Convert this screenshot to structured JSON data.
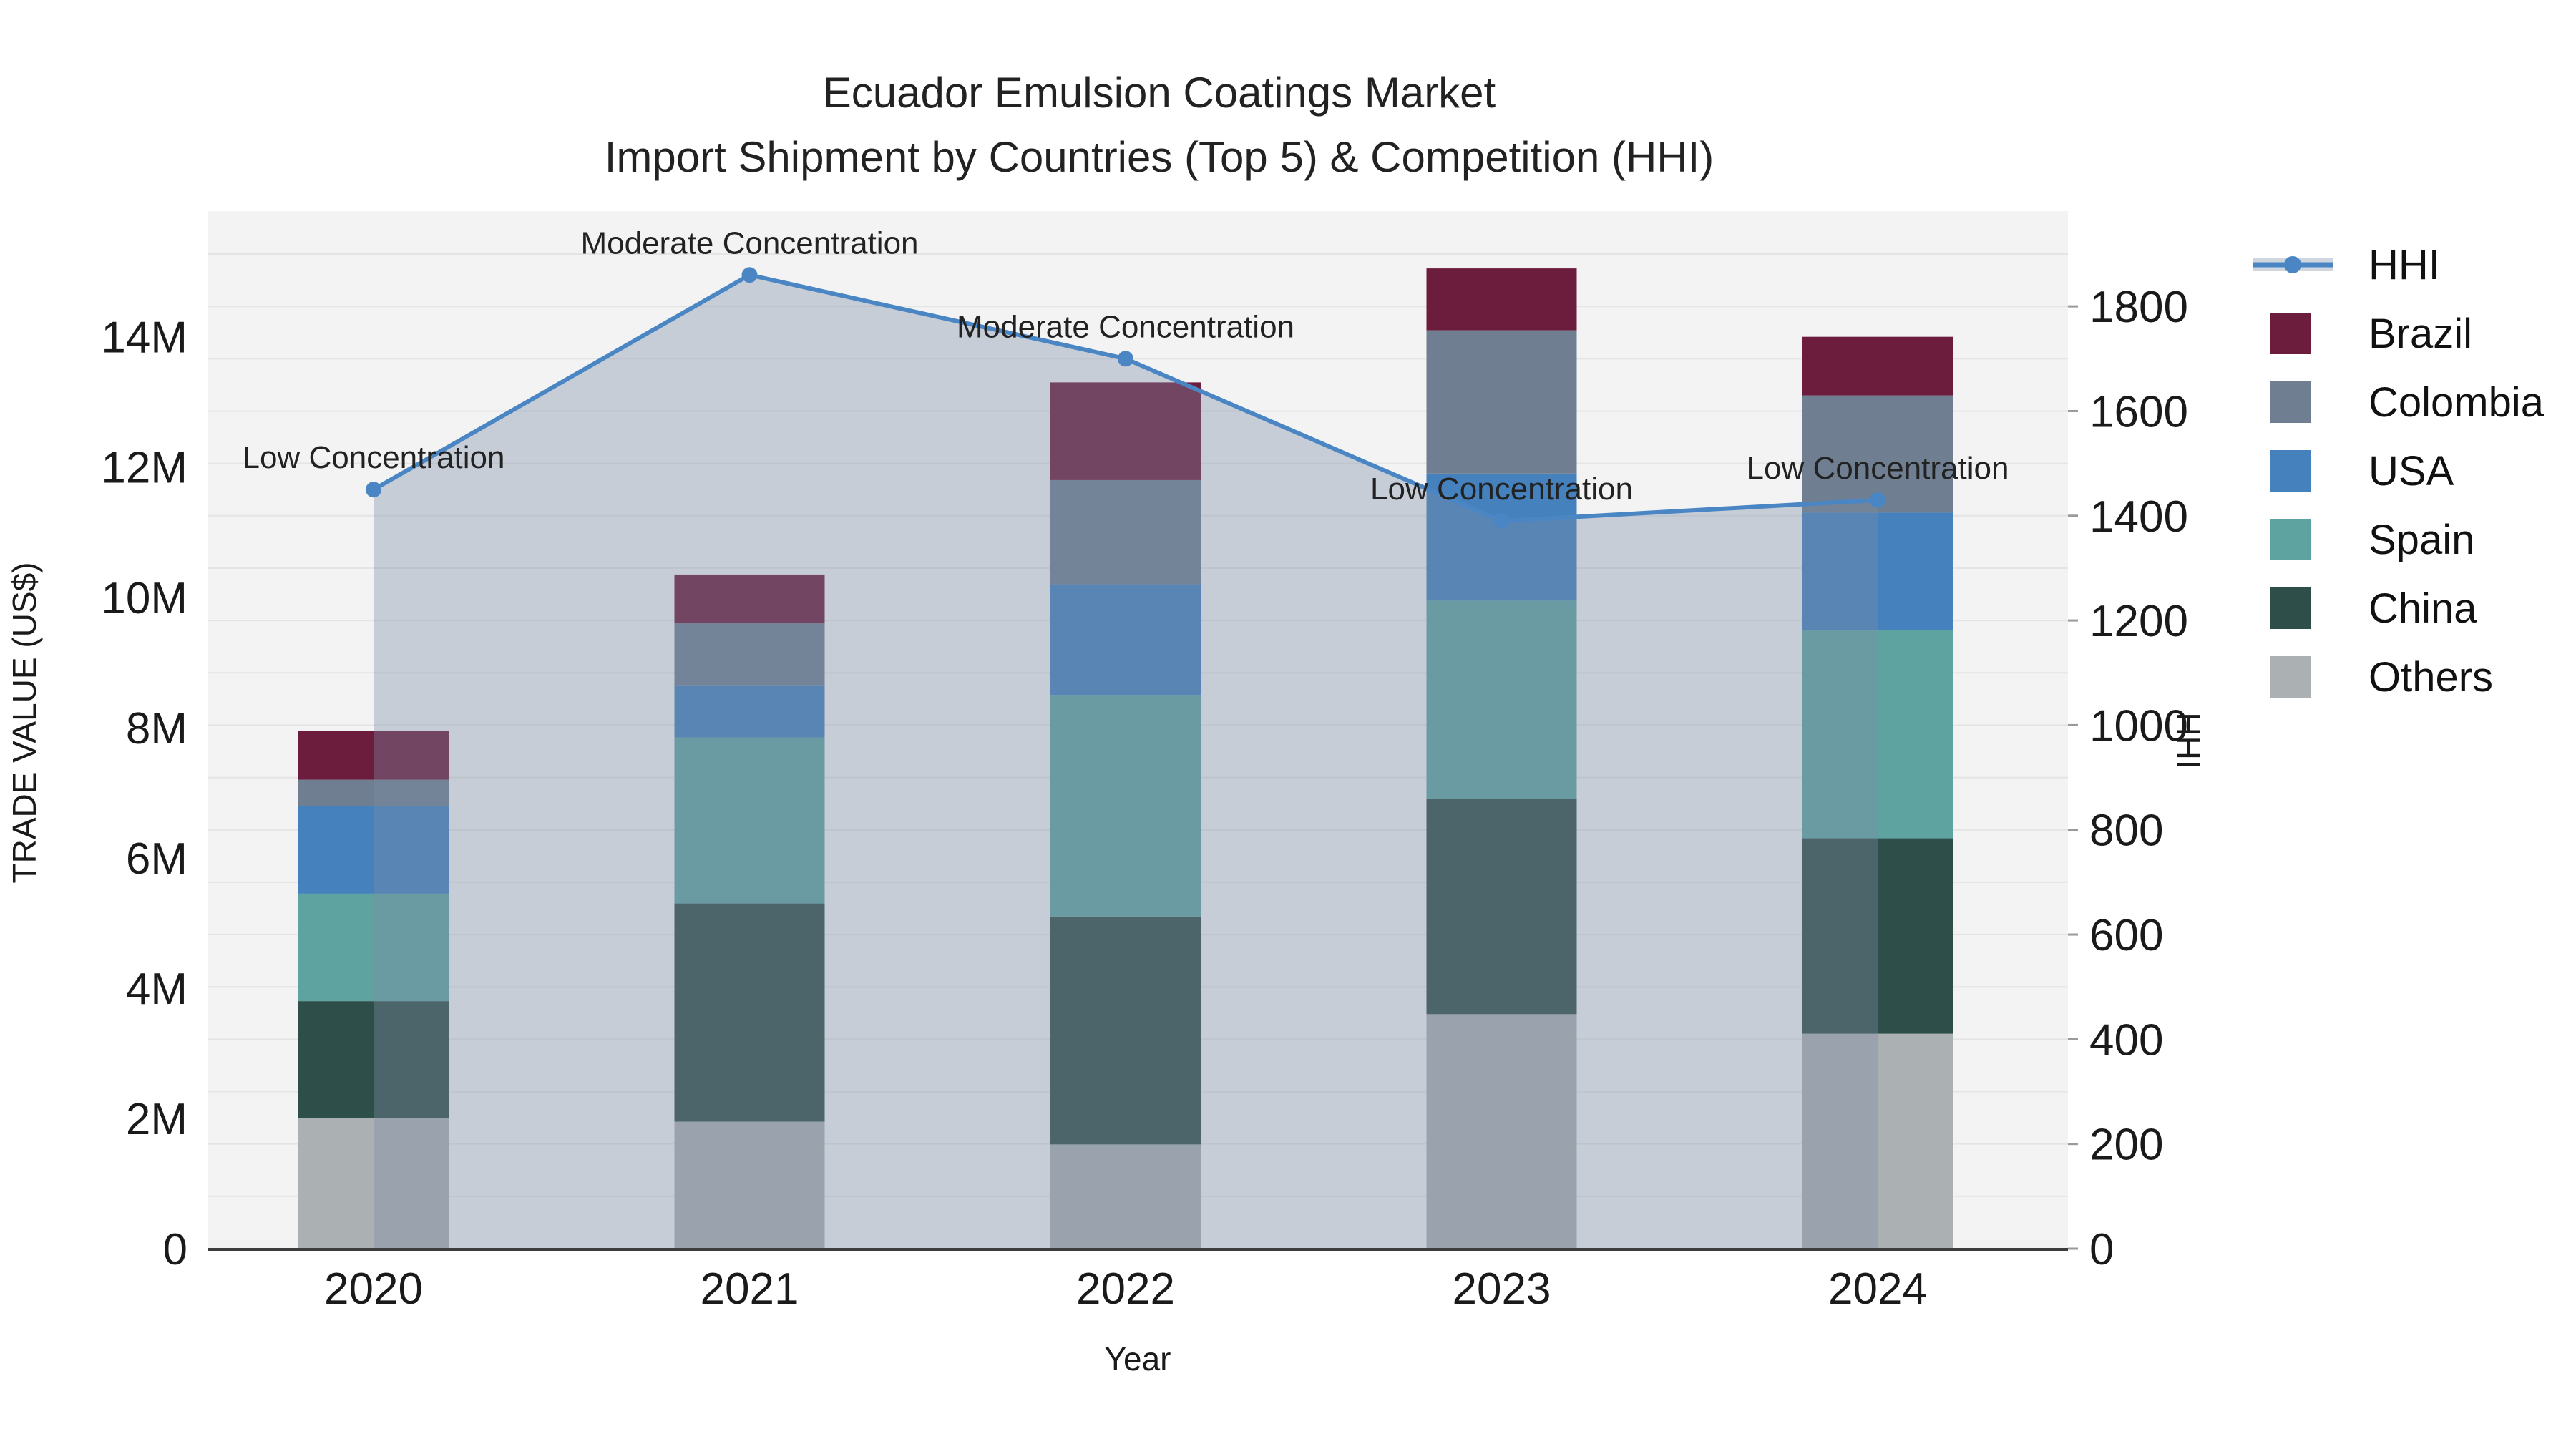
{
  "title": {
    "line1": "Ecuador Emulsion Coatings Market",
    "line2": "Import Shipment by Countries (Top 5) & Competition (HHI)"
  },
  "axes": {
    "x_title": "Year",
    "y_left_title": "TRADE VALUE (US$)",
    "y_right_title": "HHI"
  },
  "legend": [
    {
      "label": "HHI",
      "type": "line",
      "color": "#4a86c4"
    },
    {
      "label": "Brazil",
      "type": "swatch",
      "color": "#6c1c3c"
    },
    {
      "label": "Colombia",
      "type": "swatch",
      "color": "#6f7f91"
    },
    {
      "label": "USA",
      "type": "swatch",
      "color": "#4581bd"
    },
    {
      "label": "Spain",
      "type": "swatch",
      "color": "#5fa3a1"
    },
    {
      "label": "China",
      "type": "swatch",
      "color": "#2e4f49"
    },
    {
      "label": "Others",
      "type": "swatch",
      "color": "#abb0b2"
    }
  ],
  "chart_data": {
    "type": "bar",
    "title": "Ecuador Emulsion Coatings Market",
    "subtitle": "Import Shipment by Countries (Top 5) & Competition (HHI)",
    "categories": [
      "2020",
      "2021",
      "2022",
      "2023",
      "2024"
    ],
    "unit": "M US$ (trade value, millions)",
    "series": [
      {
        "name": "Others",
        "color": "#abb0b2",
        "values": [
          2.0,
          1.95,
          1.6,
          3.6,
          3.3
        ]
      },
      {
        "name": "China",
        "color": "#2e4f49",
        "values": [
          1.8,
          3.35,
          3.5,
          3.3,
          3.0
        ]
      },
      {
        "name": "Spain",
        "color": "#5fa3a1",
        "values": [
          1.65,
          2.55,
          3.4,
          3.05,
          3.2
        ]
      },
      {
        "name": "USA",
        "color": "#4581bd",
        "values": [
          1.35,
          0.8,
          1.7,
          1.95,
          1.8
        ]
      },
      {
        "name": "Colombia",
        "color": "#6f7f91",
        "values": [
          0.4,
          0.95,
          1.6,
          2.2,
          1.8
        ]
      },
      {
        "name": "Brazil",
        "color": "#6c1c3c",
        "values": [
          0.75,
          0.75,
          1.5,
          0.95,
          0.9
        ]
      }
    ],
    "bar_totals": [
      7.95,
      10.35,
      13.3,
      15.05,
      14.0
    ],
    "line_series": {
      "name": "HHI",
      "color": "#4a86c4",
      "fill_color": "rgba(125,140,165,0.37)",
      "values": [
        1450,
        1860,
        1700,
        1390,
        1430
      ]
    },
    "annotations": [
      {
        "x": "2020",
        "text": "Low Concentration"
      },
      {
        "x": "2021",
        "text": "Moderate Concentration"
      },
      {
        "x": "2022",
        "text": "Moderate Concentration"
      },
      {
        "x": "2023",
        "text": "Low Concentration"
      },
      {
        "x": "2024",
        "text": "Low Concentration"
      }
    ],
    "xlabel": "Year",
    "ylabel": "TRADE VALUE (US$)",
    "ylabel_right": "HHI",
    "y_left_ticks": [
      "0",
      "2M",
      "4M",
      "6M",
      "8M",
      "10M",
      "12M",
      "14M"
    ],
    "y_left_tick_values": [
      0,
      2,
      4,
      6,
      8,
      10,
      12,
      14
    ],
    "y_left_max": 15.93,
    "y_right_ticks": [
      "0",
      "200",
      "400",
      "600",
      "800",
      "1000",
      "1200",
      "1400",
      "1600",
      "1800"
    ],
    "y_right_tick_values": [
      0,
      200,
      400,
      600,
      800,
      1000,
      1200,
      1400,
      1600,
      1800
    ],
    "y_right_max": 1982,
    "grid": true,
    "legend_position": "right",
    "plot_bg": "#f3f3f3",
    "grid_color": "#e4e4e4",
    "axis_line_color": "#3d3d3d"
  }
}
